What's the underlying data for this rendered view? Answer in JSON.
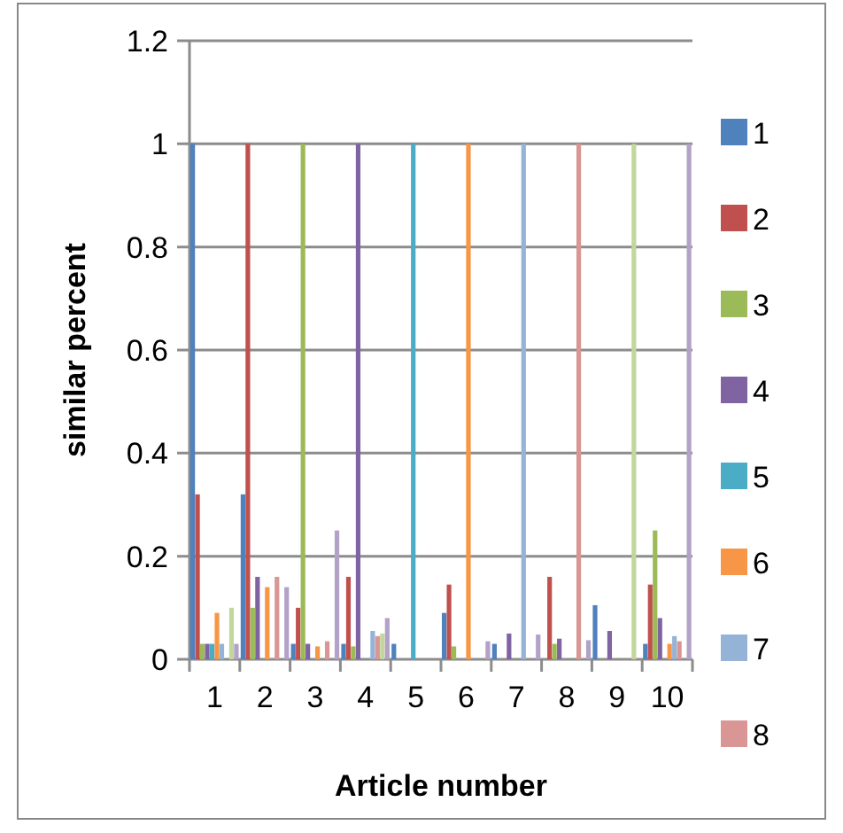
{
  "chart_data": {
    "type": "bar",
    "xlabel": "Article number",
    "ylabel": "similar percent",
    "categories": [
      "1",
      "2",
      "3",
      "4",
      "5",
      "6",
      "7",
      "8",
      "9",
      "10"
    ],
    "ylim": [
      0,
      1.2
    ],
    "yticks": [
      0,
      0.2,
      0.4,
      0.6,
      0.8,
      1,
      1.2
    ],
    "grid": "y",
    "legend": "right",
    "series": [
      {
        "name": "1",
        "color": "#4f81bd",
        "values": [
          1,
          0.32,
          0.03,
          0.03,
          0.03,
          0.09,
          0.03,
          0,
          0.105,
          0.03
        ]
      },
      {
        "name": "2",
        "color": "#c0504d",
        "values": [
          0.32,
          1,
          0.1,
          0.16,
          0,
          0.145,
          0,
          0.16,
          0,
          0.145
        ]
      },
      {
        "name": "3",
        "color": "#9bbb59",
        "values": [
          0.03,
          0.1,
          1,
          0.025,
          0,
          0.025,
          0,
          0.03,
          0,
          0.25
        ]
      },
      {
        "name": "4",
        "color": "#8064a2",
        "values": [
          0.03,
          0.16,
          0.03,
          1,
          0,
          0,
          0.05,
          0.04,
          0.055,
          0.08
        ]
      },
      {
        "name": "5",
        "color": "#4bacc6",
        "values": [
          0.03,
          0,
          0,
          0,
          1,
          0,
          0,
          0,
          0,
          0
        ]
      },
      {
        "name": "6",
        "color": "#f79646",
        "values": [
          0.09,
          0.14,
          0.025,
          0,
          0,
          1,
          0,
          0,
          0,
          0.03
        ]
      },
      {
        "name": "7",
        "color": "#95b3d7",
        "values": [
          0.03,
          0,
          0,
          0.055,
          0,
          0,
          1,
          0,
          0,
          0.045
        ]
      },
      {
        "name": "8",
        "color": "#d99694",
        "values": [
          0,
          0.16,
          0.035,
          0.045,
          0,
          0,
          0,
          1,
          0,
          0.035
        ]
      },
      {
        "color": "#c3d69b",
        "values": [
          0.1,
          0,
          0,
          0.05,
          0,
          0,
          0,
          0,
          1,
          0
        ]
      },
      {
        "color": "#b3a2c7",
        "values": [
          0.03,
          0.14,
          0.25,
          0.08,
          0,
          0.035,
          0.048,
          0.037,
          0,
          1
        ]
      }
    ]
  }
}
